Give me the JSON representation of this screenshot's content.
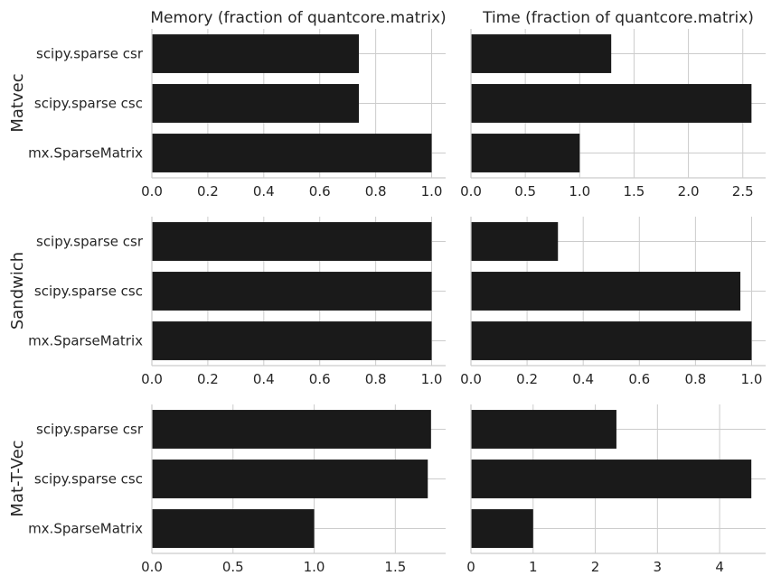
{
  "column_titles": [
    "Memory (fraction of quantcore.matrix)",
    "Time (fraction of quantcore.matrix)"
  ],
  "row_titles": [
    "Matvec",
    "Sandwich",
    "Mat-T-Vec"
  ],
  "colors": {
    "bar": "#1a1a1a",
    "grid": "#cccccc",
    "text": "#262626"
  },
  "chart_data": [
    {
      "type": "bar",
      "orientation": "horizontal",
      "row": "Matvec",
      "column": "Memory",
      "categories": [
        "scipy.sparse csr",
        "scipy.sparse csc",
        "mx.SparseMatrix"
      ],
      "values": [
        0.74,
        0.74,
        1.0
      ],
      "xlim": [
        0,
        1.05
      ],
      "xticks": [
        0.0,
        0.2,
        0.4,
        0.6,
        0.8,
        1.0
      ],
      "tick_decimals": 1,
      "grid": true
    },
    {
      "type": "bar",
      "orientation": "horizontal",
      "row": "Matvec",
      "column": "Time",
      "categories": [
        "scipy.sparse csr",
        "scipy.sparse csc",
        "mx.SparseMatrix"
      ],
      "values": [
        1.29,
        2.58,
        1.0
      ],
      "xlim": [
        0,
        2.71
      ],
      "xticks": [
        0.0,
        0.5,
        1.0,
        1.5,
        2.0,
        2.5
      ],
      "tick_decimals": 1,
      "grid": true
    },
    {
      "type": "bar",
      "orientation": "horizontal",
      "row": "Sandwich",
      "column": "Memory",
      "categories": [
        "scipy.sparse csr",
        "scipy.sparse csc",
        "mx.SparseMatrix"
      ],
      "values": [
        1.0,
        1.0,
        1.0
      ],
      "xlim": [
        0,
        1.05
      ],
      "xticks": [
        0.0,
        0.2,
        0.4,
        0.6,
        0.8,
        1.0
      ],
      "tick_decimals": 1,
      "grid": true
    },
    {
      "type": "bar",
      "orientation": "horizontal",
      "row": "Sandwich",
      "column": "Time",
      "categories": [
        "scipy.sparse csr",
        "scipy.sparse csc",
        "mx.SparseMatrix"
      ],
      "values": [
        0.31,
        0.96,
        1.0
      ],
      "xlim": [
        0,
        1.05
      ],
      "xticks": [
        0.0,
        0.2,
        0.4,
        0.6,
        0.8,
        1.0
      ],
      "tick_decimals": 1,
      "grid": true
    },
    {
      "type": "bar",
      "orientation": "horizontal",
      "row": "Mat-T-Vec",
      "column": "Memory",
      "categories": [
        "scipy.sparse csr",
        "scipy.sparse csc",
        "mx.SparseMatrix"
      ],
      "values": [
        1.72,
        1.7,
        1.0
      ],
      "xlim": [
        0,
        1.81
      ],
      "xticks": [
        0.0,
        0.5,
        1.0,
        1.5
      ],
      "tick_decimals": 1,
      "grid": true
    },
    {
      "type": "bar",
      "orientation": "horizontal",
      "row": "Mat-T-Vec",
      "column": "Time",
      "categories": [
        "scipy.sparse csr",
        "scipy.sparse csc",
        "mx.SparseMatrix"
      ],
      "values": [
        2.34,
        4.51,
        1.0
      ],
      "xlim": [
        0,
        4.74
      ],
      "xticks": [
        0,
        1,
        2,
        3,
        4
      ],
      "tick_decimals": 0,
      "grid": true
    }
  ]
}
